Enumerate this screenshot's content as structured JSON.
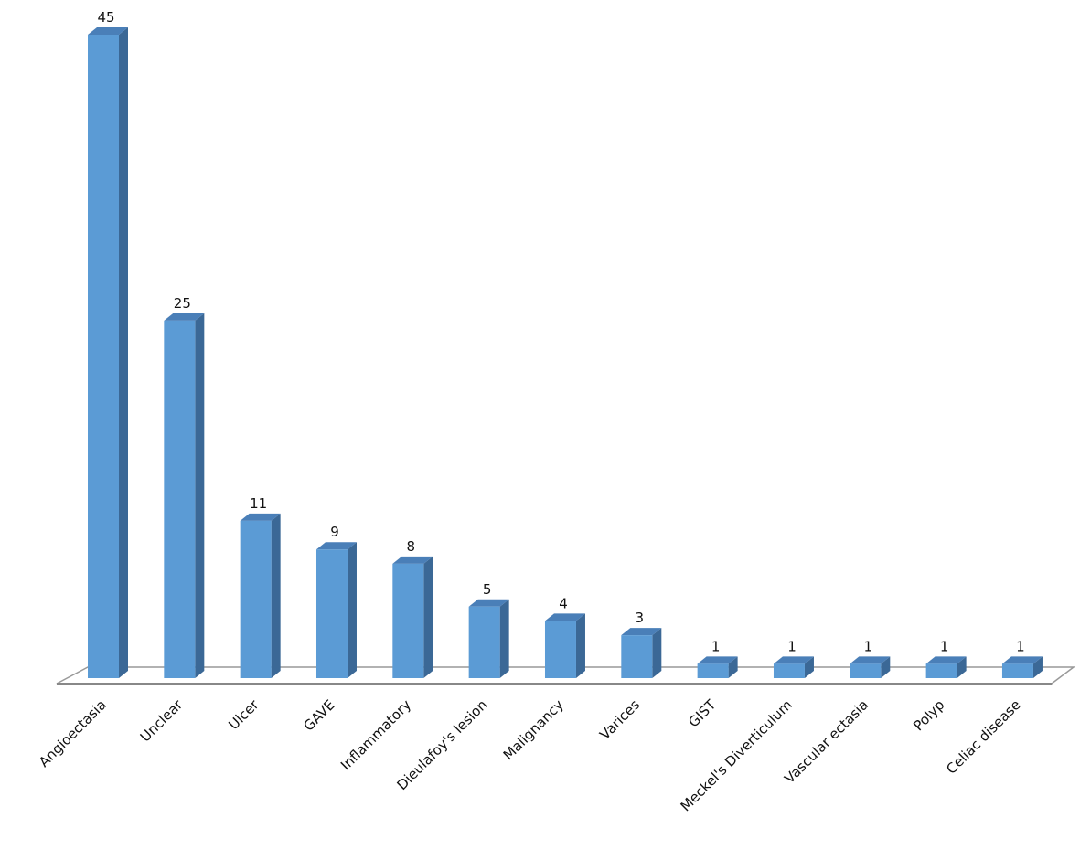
{
  "chart_data": {
    "type": "bar",
    "color": "#5b9bd5",
    "categories": [
      "Angioectasia",
      "Unclear",
      "Ulcer",
      "GAVE",
      "Inflammatory",
      "Dieulafoy's lesion",
      "Malignancy",
      "Varices",
      "GIST",
      "Meckel's Diverticulum",
      "Vascular ectasia",
      "Polyp",
      "Celiac disease"
    ],
    "values": [
      45,
      25,
      11,
      9,
      8,
      5,
      4,
      3,
      1,
      1,
      1,
      1,
      1
    ]
  }
}
